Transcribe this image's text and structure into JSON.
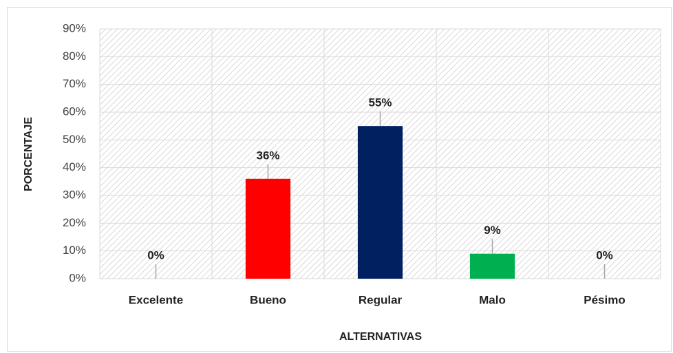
{
  "chart_data": {
    "type": "bar",
    "categories": [
      "Excelente",
      "Bueno",
      "Regular",
      "Malo",
      "Pésimo"
    ],
    "values": [
      0,
      36,
      55,
      9,
      0
    ],
    "value_labels": [
      "0%",
      "36%",
      "55%",
      "9%",
      "0%"
    ],
    "colors": [
      "#a6a6a6",
      "#ff0000",
      "#002060",
      "#00b050",
      "#a6a6a6"
    ],
    "ylim": [
      0,
      90
    ],
    "yticks": [
      {
        "value": 0,
        "label": "0%"
      },
      {
        "value": 10,
        "label": "10%"
      },
      {
        "value": 20,
        "label": "20%"
      },
      {
        "value": 30,
        "label": "30%"
      },
      {
        "value": 40,
        "label": "40%"
      },
      {
        "value": 50,
        "label": "50%"
      },
      {
        "value": 60,
        "label": "60%"
      },
      {
        "value": 70,
        "label": "70%"
      },
      {
        "value": 80,
        "label": "80%"
      },
      {
        "value": 90,
        "label": "90%"
      }
    ],
    "grid": true,
    "xlabel": "ALTERNATIVAS",
    "ylabel": "PORCENTAJE"
  }
}
